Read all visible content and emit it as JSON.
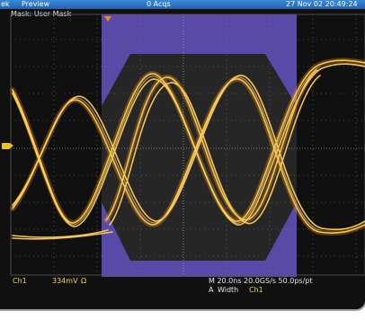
{
  "header": {
    "brand": "ek",
    "mode": "Preview",
    "acqs": "0 Acqs",
    "datetime": "27 Nov 02 20:49:24"
  },
  "mask": {
    "label": "Mask: User Mask"
  },
  "channel_marker": {
    "label": "1"
  },
  "readouts": {
    "channel": "Ch1",
    "scale": "334mV",
    "coupling": "Ω",
    "timebase": "M 20.0ns 20.0GS/s  50.0ps/pt",
    "measure_prefix": "A",
    "measure_label": "Width",
    "measure_source": "Ch1"
  },
  "colors": {
    "screen_bg": "#101010",
    "mask": "#5a4aa8",
    "mask_dark": "#2a2a2a",
    "trace": "#f2c24a",
    "trace_hot": "#ffae30",
    "grid": "#707070"
  }
}
